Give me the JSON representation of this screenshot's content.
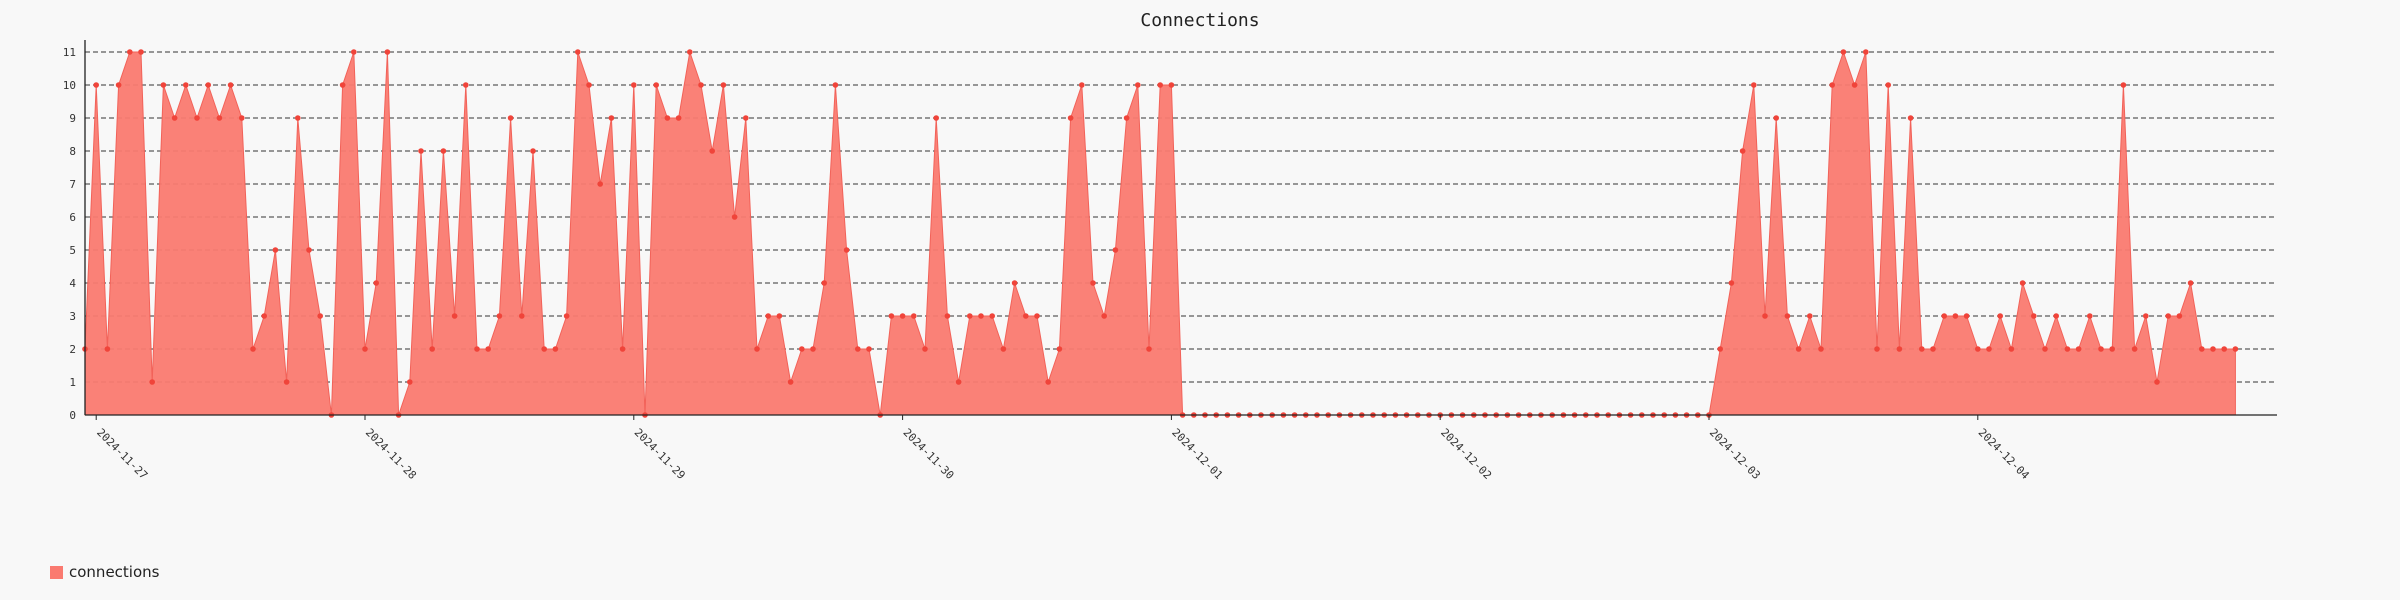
{
  "chart_data": {
    "type": "area",
    "title": "Connections",
    "xlabel": "",
    "ylabel": "",
    "ylim": [
      0,
      11
    ],
    "yticks": [
      0,
      1,
      2,
      3,
      4,
      5,
      6,
      7,
      8,
      9,
      10,
      11
    ],
    "grid": "horizontal-dashed",
    "legend_position": "bottom-left",
    "x_start": "2024-11-26T23:00",
    "x_step_hours": 1,
    "date_labels": [
      "2024-11-27",
      "2024-11-28",
      "2024-11-29",
      "2024-11-30",
      "2024-12-01",
      "2024-12-02",
      "2024-12-03",
      "2024-12-04"
    ],
    "series": [
      {
        "name": "connections",
        "color": "#fa7a70",
        "values": [
          2,
          10,
          2,
          10,
          11,
          11,
          1,
          10,
          9,
          10,
          9,
          10,
          9,
          10,
          9,
          2,
          3,
          5,
          1,
          9,
          5,
          3,
          0,
          10,
          11,
          2,
          4,
          11,
          0,
          1,
          8,
          2,
          8,
          3,
          10,
          2,
          2,
          3,
          9,
          3,
          8,
          2,
          2,
          3,
          11,
          10,
          7,
          9,
          2,
          10,
          0,
          10,
          9,
          9,
          11,
          10,
          8,
          10,
          6,
          9,
          2,
          3,
          3,
          1,
          2,
          2,
          4,
          10,
          5,
          2,
          2,
          0,
          3,
          3,
          3,
          2,
          9,
          3,
          1,
          3,
          3,
          3,
          2,
          4,
          3,
          3,
          1,
          2,
          9,
          10,
          4,
          3,
          5,
          9,
          10,
          2,
          10,
          10,
          0,
          0,
          0,
          0,
          0,
          0,
          0,
          0,
          0,
          0,
          0,
          0,
          0,
          0,
          0,
          0,
          0,
          0,
          0,
          0,
          0,
          0,
          0,
          0,
          0,
          0,
          0,
          0,
          0,
          0,
          0,
          0,
          0,
          0,
          0,
          0,
          0,
          0,
          0,
          0,
          0,
          0,
          0,
          0,
          0,
          0,
          0,
          0,
          2,
          4,
          8,
          10,
          3,
          9,
          3,
          2,
          3,
          2,
          10,
          11,
          10,
          11,
          2,
          10,
          2,
          9,
          2,
          2,
          3,
          3,
          3,
          2,
          2,
          3,
          2,
          4,
          3,
          2,
          3,
          2,
          2,
          3,
          2,
          2,
          10,
          2,
          3,
          1,
          3,
          3,
          4,
          2,
          2,
          2,
          2
        ]
      }
    ]
  }
}
